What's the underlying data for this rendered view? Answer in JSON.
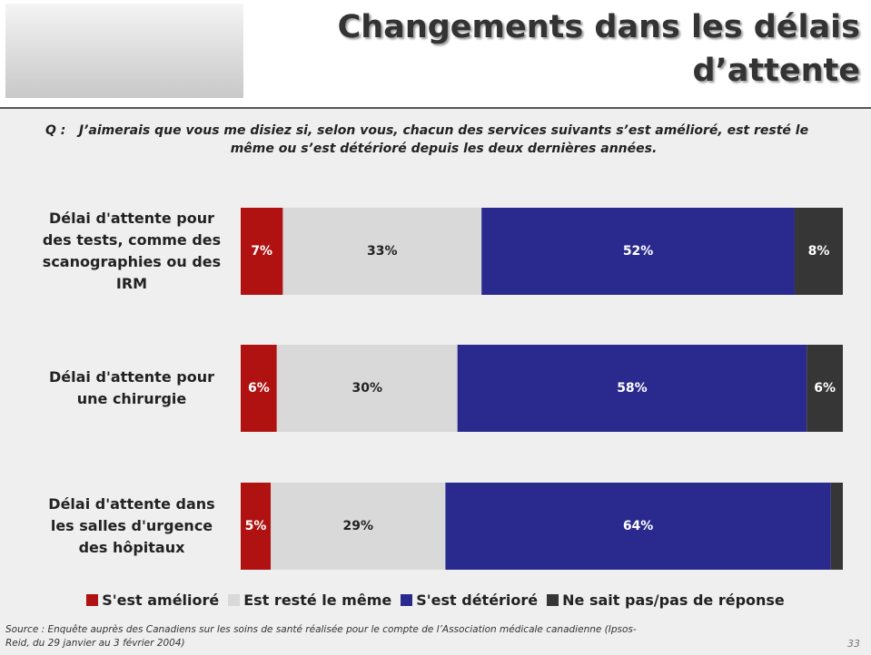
{
  "chart_data": {
    "type": "stacked-bar-horizontal",
    "title": "Changements dans les délais d’attente",
    "question_prefix": "Q :",
    "question": "J’aimerais que vous me disiez si, selon vous, chacun des services suivants s’est amélioré, est resté le même ou s’est détérioré depuis les deux dernières années.",
    "categories": [
      "Délai d'attente pour des tests, comme des scanographies ou des IRM",
      "Délai d'attente pour une chirurgie",
      "Délai d'attente dans les salles d'urgence des hôpitaux"
    ],
    "xlim": [
      0,
      100
    ],
    "series": [
      {
        "name": "S'est amélioré",
        "color": "#b01212",
        "label_color": "#ffffff",
        "values": [
          7,
          6,
          5
        ],
        "value_labels": [
          "7%",
          "6%",
          "5%"
        ]
      },
      {
        "name": "Est resté le même",
        "color": "#d9d9d9",
        "label_color": "#222222",
        "values": [
          33,
          30,
          29
        ],
        "value_labels": [
          "33%",
          "30%",
          "29%"
        ]
      },
      {
        "name": "S'est détérioré",
        "color": "#2a2a8e",
        "label_color": "#ffffff",
        "values": [
          52,
          58,
          64
        ],
        "value_labels": [
          "52%",
          "58%",
          "64%"
        ]
      },
      {
        "name": "Ne sait pas/pas de réponse",
        "color": "#363636",
        "label_color": "#ffffff",
        "values": [
          8,
          6,
          2
        ],
        "value_labels": [
          "8%",
          "6%",
          null
        ]
      }
    ],
    "source": "Source : Enquête auprès des Canadiens sur les soins de santé réalisée pour le compte de l’Association médicale canadienne (Ipsos-Reid, du 29 janvier au 3 février 2004)",
    "page_number": "33"
  }
}
